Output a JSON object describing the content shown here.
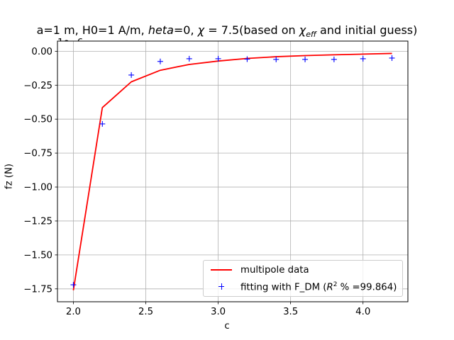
{
  "chart_data": {
    "type": "line",
    "title_parts": {
      "prefix": "a=1 m, H0=1 A/m, ",
      "theta": "heta",
      "mid": "=0, ",
      "chi": "χ",
      "chi_value": " = 7.5",
      "suffix_a": "(based on ",
      "chi_eff": "χ",
      "eff": "eff",
      "suffix_b": " and initial guess)"
    },
    "offset_label": "1e−6",
    "xlabel": "c",
    "ylabel": "fz (N)",
    "xlim": [
      1.89,
      4.31
    ],
    "ylim": [
      -1.845,
      0.075
    ],
    "x_ticks": [
      "2.0",
      "2.5",
      "3.0",
      "3.5",
      "4.0"
    ],
    "x_tick_values": [
      2.0,
      2.5,
      3.0,
      3.5,
      4.0
    ],
    "y_ticks": [
      "0.00",
      "−0.25",
      "−0.50",
      "−0.75",
      "−1.00",
      "−1.25",
      "−1.50",
      "−1.75"
    ],
    "y_tick_values": [
      0.0,
      -0.25,
      -0.5,
      -0.75,
      -1.0,
      -1.25,
      -1.5,
      -1.75
    ],
    "grid": true,
    "legend_placement": "lower-right",
    "series": [
      {
        "name": "multipole data",
        "style": "line",
        "color": "#ff0000",
        "x": [
          2.0,
          2.2,
          2.4,
          2.6,
          2.8,
          3.0,
          3.2,
          3.4,
          3.6,
          3.8,
          4.0,
          4.2
        ],
        "y": [
          -1.76,
          -0.415,
          -0.225,
          -0.14,
          -0.097,
          -0.072,
          -0.053,
          -0.04,
          -0.032,
          -0.026,
          -0.021,
          -0.016
        ]
      },
      {
        "name_prefix": "fitting with F_DM (",
        "name_r2": "R",
        "name_sup": "2",
        "name_suffix": " % =99.864)",
        "style": "marker-plus",
        "color": "#0000ff",
        "x": [
          2.0,
          2.2,
          2.4,
          2.6,
          2.8,
          3.0,
          3.2,
          3.4,
          3.6,
          3.8,
          4.0,
          4.2
        ],
        "y": [
          -1.72,
          -0.535,
          -0.175,
          -0.075,
          -0.055,
          -0.055,
          -0.058,
          -0.06,
          -0.06,
          -0.06,
          -0.055,
          -0.05
        ]
      }
    ]
  }
}
